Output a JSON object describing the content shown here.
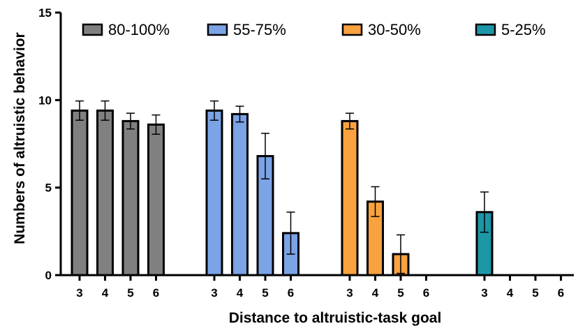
{
  "chart_data": {
    "type": "bar",
    "xlabel": "Distance to altruistic-task goal",
    "ylabel": "Numbers of altruistic behavior",
    "ylim": [
      0,
      15
    ],
    "yticks": [
      0,
      5,
      10,
      15
    ],
    "grid": false,
    "legend_position": "top",
    "categories": [
      "3",
      "4",
      "5",
      "6"
    ],
    "series": [
      {
        "name": "80-100%",
        "color": "#808080",
        "values": [
          9.4,
          9.4,
          8.8,
          8.6
        ],
        "errors": [
          0.55,
          0.55,
          0.45,
          0.55
        ]
      },
      {
        "name": "55-75%",
        "color": "#7ba3e6",
        "values": [
          9.4,
          9.2,
          6.8,
          2.4
        ],
        "errors": [
          0.55,
          0.45,
          1.3,
          1.2
        ]
      },
      {
        "name": "30-50%",
        "color": "#f9a23f",
        "values": [
          8.8,
          4.2,
          1.2,
          0
        ],
        "errors": [
          0.45,
          0.85,
          1.1,
          0
        ]
      },
      {
        "name": "5-25%",
        "color": "#1b97a8",
        "values": [
          3.6,
          0,
          0,
          0
        ],
        "errors": [
          1.15,
          0,
          0,
          0
        ]
      }
    ]
  }
}
